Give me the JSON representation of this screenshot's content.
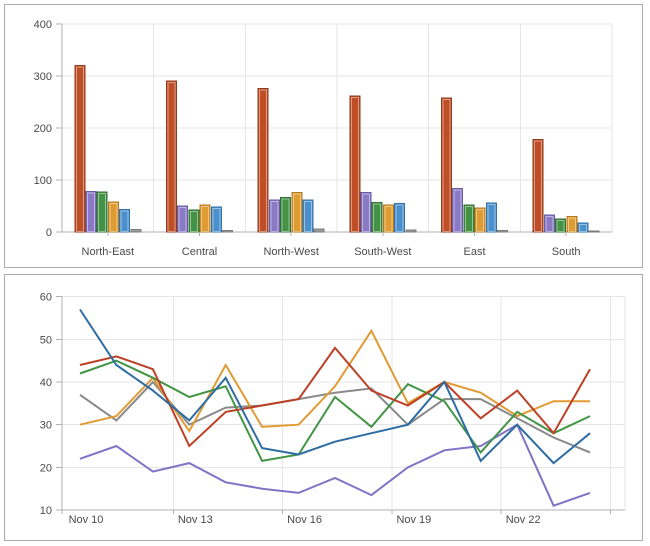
{
  "chart_data": [
    {
      "type": "bar",
      "title": "",
      "categories": [
        "North-East",
        "Central",
        "North-West",
        "South-West",
        "East",
        "South"
      ],
      "series": [
        {
          "name": "red",
          "color": "#bf4e26",
          "border": "#8f3a1a",
          "values": [
            320,
            290,
            276,
            262,
            258,
            178
          ]
        },
        {
          "name": "purple",
          "color": "#8a7ac5",
          "border": "#665aa5",
          "values": [
            78,
            50,
            62,
            76,
            84,
            33
          ]
        },
        {
          "name": "green",
          "color": "#449245",
          "border": "#2e7030",
          "values": [
            77,
            42,
            66,
            57,
            52,
            25
          ]
        },
        {
          "name": "orange",
          "color": "#df9c32",
          "border": "#b2791f",
          "values": [
            58,
            52,
            76,
            52,
            46,
            30
          ]
        },
        {
          "name": "blue",
          "color": "#4a90cd",
          "border": "#3270a8",
          "values": [
            43,
            48,
            62,
            55,
            56,
            17
          ]
        },
        {
          "name": "gray",
          "color": "#9d9d9d",
          "border": "#7c7c7c",
          "values": [
            5,
            3,
            6,
            4,
            3,
            2
          ]
        }
      ],
      "ylabel": "",
      "xlabel": "",
      "ylim": [
        0,
        400
      ],
      "y_ticks": [
        "0",
        "100",
        "200",
        "300",
        "400"
      ],
      "grid": true,
      "legend": "none"
    },
    {
      "type": "line",
      "title": "",
      "x": [
        "Nov 10",
        "Nov 11",
        "Nov 12",
        "Nov 13",
        "Nov 14",
        "Nov 15",
        "Nov 16",
        "Nov 17",
        "Nov 18",
        "Nov 19",
        "Nov 20",
        "Nov 21",
        "Nov 22",
        "Nov 23",
        "Nov 24"
      ],
      "x_tick_labels": [
        "Nov 10",
        "Nov 13",
        "Nov 16",
        "Nov 19",
        "Nov 22"
      ],
      "series": [
        {
          "name": "purple",
          "color": "#8073c5",
          "values": [
            22,
            25,
            19,
            21,
            16.5,
            15,
            14,
            17.5,
            13.5,
            20,
            24,
            25,
            30,
            11,
            14
          ]
        },
        {
          "name": "gray",
          "color": "#898989",
          "values": [
            37,
            31,
            40,
            30,
            34,
            34.5,
            36,
            37.5,
            38.5,
            30,
            36,
            36,
            31.5,
            27,
            23.5
          ]
        },
        {
          "name": "orange",
          "color": "#e09b34",
          "values": [
            30,
            32,
            41,
            28.5,
            44,
            29.5,
            30,
            39,
            52,
            35,
            40,
            37.5,
            32,
            35.5,
            35.5
          ]
        },
        {
          "name": "green",
          "color": "#429544",
          "values": [
            42,
            45,
            41,
            36.5,
            39,
            21.5,
            23,
            36.5,
            29.5,
            39.5,
            35.5,
            23.5,
            33,
            28,
            32
          ]
        },
        {
          "name": "red",
          "color": "#bc4026",
          "values": [
            44,
            46,
            43,
            25,
            33,
            34.5,
            36,
            48,
            38,
            34.5,
            40,
            31.5,
            38,
            28,
            43
          ]
        },
        {
          "name": "blue",
          "color": "#2d6da3",
          "values": [
            57,
            44,
            38,
            31,
            41,
            24.5,
            23,
            26,
            28,
            30,
            40,
            21.5,
            30,
            21,
            28
          ]
        }
      ],
      "ylabel": "",
      "xlabel": "",
      "ylim": [
        10,
        60
      ],
      "y_ticks": [
        "10",
        "20",
        "30",
        "40",
        "50",
        "60"
      ],
      "grid": true,
      "legend": "none"
    }
  ],
  "theme": {
    "grid_color": "#e6e6e6",
    "axis_color": "#b0b0b0",
    "label_color": "#4a4a4a",
    "panel_border": "#ababab",
    "background": "#ffffff"
  }
}
